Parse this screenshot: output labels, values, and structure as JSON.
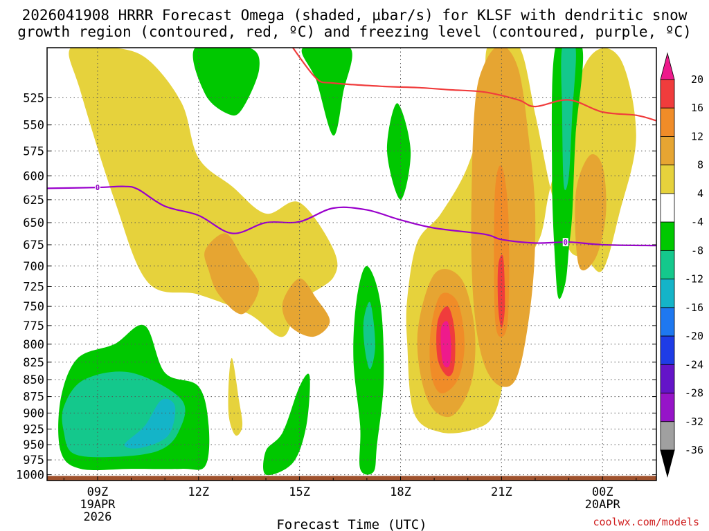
{
  "chart_data": {
    "type": "heatmap",
    "title_lines": [
      "2026041908 HRRR Forecast Omega (shaded, μbar/s) for KLSF with dendritic snow",
      "growth region (contoured, red, ºC) and freezing level (contoured, purple, ºC)"
    ],
    "xlabel": "Forecast Time (UTC)",
    "ylabel": "",
    "credit": "coolwx.com/models",
    "x_range_hours": [
      7.5,
      25.6
    ],
    "y_levels": [
      525,
      550,
      575,
      600,
      625,
      650,
      675,
      700,
      725,
      750,
      775,
      800,
      825,
      850,
      875,
      900,
      925,
      950,
      975,
      1000
    ],
    "x_ticks": [
      {
        "hour": 9,
        "lines": [
          "09Z",
          "19APR",
          "2026"
        ]
      },
      {
        "hour": 12,
        "lines": [
          "12Z"
        ]
      },
      {
        "hour": 15,
        "lines": [
          "15Z"
        ]
      },
      {
        "hour": 18,
        "lines": [
          "18Z"
        ]
      },
      {
        "hour": 21,
        "lines": [
          "21Z"
        ]
      },
      {
        "hour": 24,
        "lines": [
          "00Z",
          "20APR"
        ]
      }
    ],
    "colorbar": {
      "labels": [
        "20",
        "16",
        "12",
        "8",
        "4",
        "-4",
        "-8",
        "-12",
        "-16",
        "-20",
        "-24",
        "-28",
        "-32",
        "-36"
      ],
      "bins": [
        {
          "lo": 16,
          "hi": 20,
          "color": "#f03c3c"
        },
        {
          "lo": 12,
          "hi": 16,
          "color": "#f08c28"
        },
        {
          "lo": 8,
          "hi": 12,
          "color": "#e6a532"
        },
        {
          "lo": 4,
          "hi": 8,
          "color": "#e6d23c"
        },
        {
          "lo": -4,
          "hi": 4,
          "color": "#ffffff"
        },
        {
          "lo": -8,
          "hi": -4,
          "color": "#00c800"
        },
        {
          "lo": -12,
          "hi": -8,
          "color": "#14c88c"
        },
        {
          "lo": -16,
          "hi": -12,
          "color": "#14b4c8"
        },
        {
          "lo": -20,
          "hi": -16,
          "color": "#1e78f0"
        },
        {
          "lo": -24,
          "hi": -20,
          "color": "#1e3ce6"
        },
        {
          "lo": -28,
          "hi": -24,
          "color": "#6414c8"
        },
        {
          "lo": -32,
          "hi": -28,
          "color": "#9614c8"
        },
        {
          "lo": -36,
          "hi": -32,
          "color": "#a0a0a0"
        }
      ],
      "over_color": "#ee1a8c",
      "under_color": "#000000"
    },
    "freezing_level": {
      "label": "0",
      "color": "#9900cc",
      "points": [
        [
          7.5,
          613
        ],
        [
          9,
          612
        ],
        [
          9.8,
          611
        ],
        [
          10.2,
          614
        ],
        [
          11.0,
          632
        ],
        [
          12.0,
          642
        ],
        [
          13.0,
          662
        ],
        [
          14.0,
          650
        ],
        [
          15.0,
          649
        ],
        [
          16.0,
          634
        ],
        [
          17.0,
          636
        ],
        [
          18.0,
          647
        ],
        [
          19.0,
          656
        ],
        [
          20.5,
          663
        ],
        [
          21.0,
          669
        ],
        [
          22.0,
          673
        ],
        [
          23.0,
          672
        ],
        [
          24.0,
          675
        ],
        [
          25.6,
          676
        ]
      ],
      "label_positions": [
        [
          9,
          612
        ],
        [
          22.9,
          672
        ]
      ]
    },
    "dgz_contour": {
      "color": "#f03c3c",
      "points": [
        [
          14.8,
          482
        ],
        [
          15.5,
          508
        ],
        [
          16.0,
          512
        ],
        [
          17.5,
          515
        ],
        [
          18.5,
          516
        ],
        [
          19.5,
          518
        ],
        [
          20.5,
          520
        ],
        [
          21.5,
          527
        ],
        [
          22.0,
          533
        ],
        [
          23.0,
          527
        ],
        [
          24.0,
          538
        ],
        [
          25.0,
          541
        ],
        [
          25.6,
          546
        ]
      ]
    },
    "omega_regions": [
      {
        "value": 6,
        "color": "#e6d23c",
        "label": "Main upward region left",
        "points": [
          [
            8.2,
            482
          ],
          [
            9.5,
            482
          ],
          [
            10.5,
            492
          ],
          [
            11.5,
            530
          ],
          [
            12.0,
            582
          ],
          [
            13.0,
            611
          ],
          [
            14.0,
            640
          ],
          [
            15.0,
            628
          ],
          [
            16.0,
            680
          ],
          [
            16.0,
            714
          ],
          [
            15.0,
            745
          ],
          [
            14.5,
            790
          ],
          [
            13.5,
            760
          ],
          [
            12.0,
            735
          ],
          [
            10.5,
            720
          ],
          [
            9.5,
            625
          ],
          [
            8.5,
            520
          ]
        ]
      },
      {
        "value": 6,
        "color": "#e6d23c",
        "label": "Lower left thin",
        "points": [
          [
            13.0,
            820
          ],
          [
            13.2,
            880
          ],
          [
            13.3,
            920
          ],
          [
            13.1,
            935
          ],
          [
            12.9,
            905
          ],
          [
            12.9,
            850
          ]
        ]
      },
      {
        "value": 6,
        "color": "#e6d23c",
        "label": "Center-right large",
        "points": [
          [
            18.5,
            672
          ],
          [
            19.2,
            640
          ],
          [
            20.0,
            590
          ],
          [
            20.5,
            530
          ],
          [
            20.6,
            480
          ],
          [
            21.5,
            480
          ],
          [
            22.0,
            540
          ],
          [
            22.5,
            620
          ],
          [
            23.0,
            680
          ],
          [
            23.5,
            690
          ],
          [
            24.0,
            705
          ],
          [
            24.5,
            640
          ],
          [
            25.0,
            560
          ],
          [
            24.5,
            490
          ],
          [
            23.5,
            495
          ],
          [
            22.5,
            605
          ],
          [
            22.2,
            660
          ],
          [
            21.8,
            700
          ],
          [
            21.2,
            820
          ],
          [
            20.8,
            900
          ],
          [
            20.2,
            925
          ],
          [
            19.2,
            930
          ],
          [
            18.4,
            900
          ],
          [
            18.2,
            800
          ],
          [
            18.2,
            740
          ]
        ]
      },
      {
        "value": 10,
        "color": "#e6a532",
        "label": "Upper-left orange cell",
        "points": [
          [
            12.2,
            681
          ],
          [
            12.8,
            662
          ],
          [
            13.3,
            690
          ],
          [
            13.8,
            725
          ],
          [
            13.3,
            760
          ],
          [
            12.6,
            735
          ],
          [
            12.3,
            705
          ]
        ]
      },
      {
        "value": 10,
        "color": "#e6a532",
        "label": "Mid-left orange cell",
        "points": [
          [
            14.5,
            745
          ],
          [
            15.0,
            715
          ],
          [
            15.5,
            740
          ],
          [
            15.9,
            770
          ],
          [
            15.4,
            790
          ],
          [
            14.7,
            775
          ]
        ]
      },
      {
        "value": 10,
        "color": "#e6a532",
        "label": "Right orange tall",
        "points": [
          [
            20.2,
            535
          ],
          [
            20.5,
            495
          ],
          [
            21.0,
            480
          ],
          [
            21.5,
            500
          ],
          [
            21.8,
            560
          ],
          [
            22.0,
            640
          ],
          [
            21.9,
            735
          ],
          [
            21.5,
            840
          ],
          [
            21.0,
            860
          ],
          [
            20.5,
            830
          ],
          [
            20.2,
            760
          ],
          [
            20.1,
            660
          ]
        ]
      },
      {
        "value": 10,
        "color": "#e6a532",
        "label": "Far-right orange",
        "points": [
          [
            23.2,
            620
          ],
          [
            23.6,
            580
          ],
          [
            24.0,
            590
          ],
          [
            24.1,
            640
          ],
          [
            23.8,
            690
          ],
          [
            23.3,
            700
          ]
        ]
      },
      {
        "value": 10,
        "color": "#e6a532",
        "label": "Lower center orange",
        "points": [
          [
            18.5,
            790
          ],
          [
            19.0,
            710
          ],
          [
            19.8,
            715
          ],
          [
            20.2,
            780
          ],
          [
            20.1,
            855
          ],
          [
            19.5,
            905
          ],
          [
            18.8,
            880
          ]
        ]
      },
      {
        "value": 14,
        "color": "#f08c28",
        "label": "Lower center orange2",
        "points": [
          [
            18.9,
            780
          ],
          [
            19.2,
            735
          ],
          [
            19.7,
            745
          ],
          [
            19.9,
            800
          ],
          [
            19.7,
            850
          ],
          [
            19.2,
            870
          ],
          [
            18.9,
            840
          ]
        ]
      },
      {
        "value": 14,
        "color": "#f08c28",
        "label": "Right column orange2",
        "points": [
          [
            20.8,
            620
          ],
          [
            21.0,
            590
          ],
          [
            21.2,
            640
          ],
          [
            21.2,
            760
          ],
          [
            21.0,
            790
          ],
          [
            20.8,
            760
          ]
        ]
      },
      {
        "value": 18,
        "color": "#f03c3c",
        "label": "Lower center red",
        "points": [
          [
            19.1,
            770
          ],
          [
            19.4,
            750
          ],
          [
            19.6,
            780
          ],
          [
            19.6,
            830
          ],
          [
            19.4,
            845
          ],
          [
            19.1,
            820
          ]
        ]
      },
      {
        "value": 18,
        "color": "#f03c3c",
        "label": "Right column red",
        "points": [
          [
            20.9,
            700
          ],
          [
            21.05,
            690
          ],
          [
            21.1,
            750
          ],
          [
            21.0,
            778
          ],
          [
            20.9,
            750
          ]
        ]
      },
      {
        "value": 22,
        "color": "#ee1a8c",
        "label": "Lower center magenta",
        "points": [
          [
            19.2,
            780
          ],
          [
            19.4,
            770
          ],
          [
            19.5,
            800
          ],
          [
            19.45,
            830
          ],
          [
            19.25,
            825
          ]
        ]
      },
      {
        "value": -6,
        "color": "#00c800",
        "label": "Lower-left green",
        "points": [
          [
            7.9,
            880
          ],
          [
            8.4,
            820
          ],
          [
            9.5,
            800
          ],
          [
            10.4,
            775
          ],
          [
            11.0,
            840
          ],
          [
            12.0,
            860
          ],
          [
            12.3,
            920
          ],
          [
            12.2,
            985
          ],
          [
            11.5,
            990
          ],
          [
            10.0,
            990
          ],
          [
            8.5,
            990
          ],
          [
            7.9,
            960
          ]
        ]
      },
      {
        "value": -10,
        "color": "#14c88c",
        "label": "Lower-left teal",
        "points": [
          [
            8.0,
            890
          ],
          [
            8.6,
            850
          ],
          [
            10.0,
            840
          ],
          [
            11.5,
            880
          ],
          [
            11.4,
            930
          ],
          [
            10.8,
            960
          ],
          [
            9.5,
            970
          ],
          [
            8.3,
            965
          ],
          [
            8.0,
            930
          ]
        ]
      },
      {
        "value": -14,
        "color": "#14b4c8",
        "label": "Lower-left cyan",
        "points": [
          [
            9.8,
            950
          ],
          [
            10.4,
            920
          ],
          [
            10.9,
            880
          ],
          [
            11.3,
            890
          ],
          [
            11.1,
            935
          ],
          [
            10.3,
            955
          ]
        ]
      },
      {
        "value": -6,
        "color": "#00c800",
        "label": "Green band lower-mid",
        "points": [
          [
            14.0,
            960
          ],
          [
            14.5,
            930
          ],
          [
            15.0,
            860
          ],
          [
            15.3,
            845
          ],
          [
            15.2,
            920
          ],
          [
            14.8,
            980
          ],
          [
            14.0,
            1000
          ]
        ]
      },
      {
        "value": -6,
        "color": "#00c800",
        "label": "Green column 17Z",
        "points": [
          [
            16.7,
            740
          ],
          [
            17.0,
            700
          ],
          [
            17.4,
            745
          ],
          [
            17.5,
            850
          ],
          [
            17.3,
            950
          ],
          [
            17.2,
            995
          ],
          [
            16.8,
            990
          ],
          [
            16.8,
            920
          ],
          [
            16.6,
            820
          ]
        ]
      },
      {
        "value": -10,
        "color": "#14c88c",
        "label": "Teal in 17Z column",
        "points": [
          [
            16.9,
            770
          ],
          [
            17.1,
            745
          ],
          [
            17.25,
            800
          ],
          [
            17.1,
            835
          ],
          [
            16.95,
            810
          ]
        ]
      },
      {
        "value": -6,
        "color": "#00c800",
        "label": "Top green 13Z",
        "points": [
          [
            11.9,
            482
          ],
          [
            13.5,
            482
          ],
          [
            13.8,
            500
          ],
          [
            13.3,
            535
          ],
          [
            12.9,
            540
          ],
          [
            12.2,
            522
          ]
        ]
      },
      {
        "value": -6,
        "color": "#00c800",
        "label": "Top green 16Z",
        "points": [
          [
            15.1,
            482
          ],
          [
            16.5,
            482
          ],
          [
            16.3,
            520
          ],
          [
            16.0,
            560
          ],
          [
            15.5,
            510
          ]
        ]
      },
      {
        "value": -6,
        "color": "#00c800",
        "label": "Green diamond 18Z",
        "points": [
          [
            17.6,
            575
          ],
          [
            17.9,
            530
          ],
          [
            18.3,
            575
          ],
          [
            18.0,
            625
          ]
        ]
      },
      {
        "value": -6,
        "color": "#00c800",
        "label": "Green column 22Z",
        "points": [
          [
            22.6,
            482
          ],
          [
            23.4,
            482
          ],
          [
            23.2,
            560
          ],
          [
            23.1,
            640
          ],
          [
            23.0,
            680
          ],
          [
            22.9,
            720
          ],
          [
            22.7,
            740
          ],
          [
            22.6,
            700
          ],
          [
            22.5,
            600
          ]
        ]
      },
      {
        "value": -10,
        "color": "#14c88c",
        "label": "Teal 22Z column",
        "points": [
          [
            22.8,
            482
          ],
          [
            23.2,
            482
          ],
          [
            23.1,
            540
          ],
          [
            23.0,
            600
          ],
          [
            22.85,
            610
          ],
          [
            22.8,
            540
          ]
        ]
      }
    ],
    "terrain": {
      "color": "#a0522d",
      "top_pressure": 1002
    }
  }
}
